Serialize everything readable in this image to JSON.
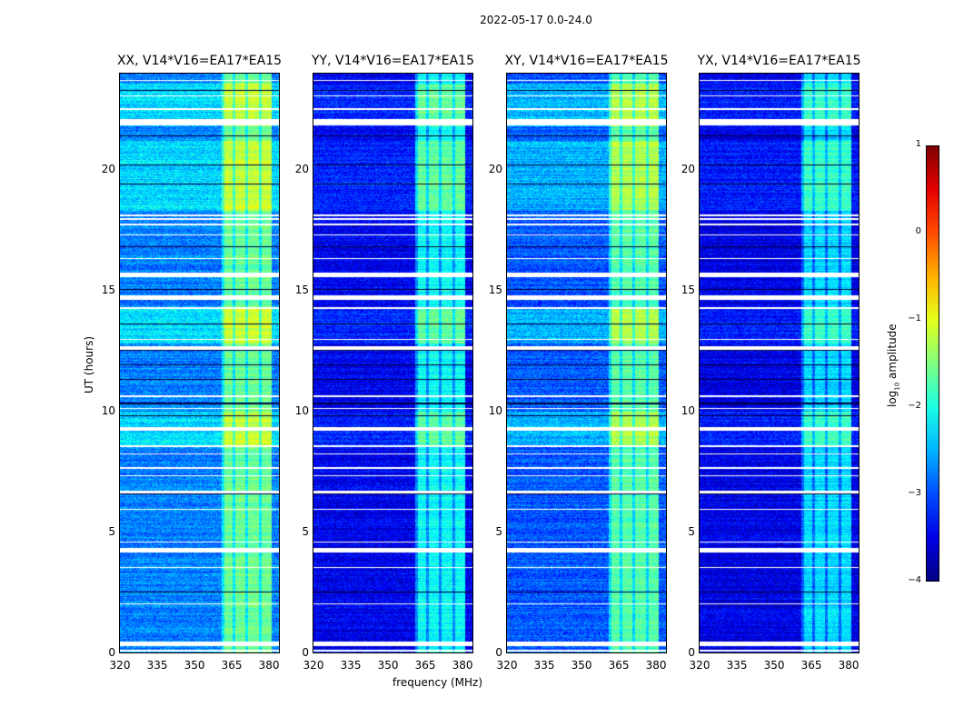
{
  "chart_data": {
    "type": "heatmap",
    "title": "2022-05-17 0.0-24.0",
    "xlabel": "frequency (MHz)",
    "ylabel": "UT (hours)",
    "xlim": [
      320,
      384
    ],
    "ylim": [
      0,
      24
    ],
    "xticks": [
      "320",
      "335",
      "350",
      "365",
      "380"
    ],
    "yticks": [
      "0",
      "5",
      "10",
      "15",
      "20"
    ],
    "xtick_values": [
      320,
      335,
      350,
      365,
      380
    ],
    "ytick_values": [
      0,
      5,
      10,
      15,
      20
    ],
    "colorbar": {
      "label_main": "log",
      "label_sub": "10",
      "label_rest": " amplitude",
      "range": [
        -4,
        1
      ],
      "ticks": [
        "1",
        "0",
        "−1",
        "−2",
        "−3",
        "−4"
      ],
      "tick_values": [
        1,
        0,
        -1,
        -2,
        -3,
        -4
      ],
      "colormap": "jet"
    },
    "panels": [
      {
        "title": "XX, V14*V16=EA17*EA15",
        "base_level": -2.75,
        "rfi_level": -1.6
      },
      {
        "title": "YY, V14*V16=EA17*EA15",
        "base_level": -3.45,
        "rfi_level": -2.1
      },
      {
        "title": "XY, V14*V16=EA17*EA15",
        "base_level": -2.95,
        "rfi_level": -1.7
      },
      {
        "title": "YX, V14*V16=EA17*EA15",
        "base_level": -3.5,
        "rfi_level": -2.3
      }
    ],
    "rfi_band_mhz": [
      361,
      381
    ],
    "rfi_stripes_mhz": [
      361.5,
      366,
      371,
      376.5
    ],
    "enhanced_ut_hours": [
      [
        18.3,
        21.2
      ],
      [
        12.8,
        14.3
      ],
      [
        8.6,
        10.0
      ],
      [
        21.8,
        23.6
      ]
    ],
    "flagged_ut_hours": [
      [
        0.05,
        0.12
      ],
      [
        0.25,
        0.45
      ],
      [
        2.0,
        2.05
      ],
      [
        3.5,
        3.56
      ],
      [
        4.15,
        4.35
      ],
      [
        4.55,
        4.6
      ],
      [
        5.9,
        5.95
      ],
      [
        6.6,
        6.7
      ],
      [
        7.3,
        7.35
      ],
      [
        7.6,
        7.68
      ],
      [
        8.2,
        8.25
      ],
      [
        8.5,
        8.6
      ],
      [
        9.2,
        9.35
      ],
      [
        10.1,
        10.15
      ],
      [
        10.6,
        10.66
      ],
      [
        12.55,
        12.7
      ],
      [
        12.95,
        13.0
      ],
      [
        14.25,
        14.3
      ],
      [
        14.6,
        14.8
      ],
      [
        15.55,
        15.75
      ],
      [
        16.3,
        16.35
      ],
      [
        17.3,
        17.35
      ],
      [
        17.7,
        17.78
      ],
      [
        17.95,
        18.02
      ],
      [
        18.1,
        18.16
      ],
      [
        21.85,
        22.1
      ],
      [
        22.5,
        22.58
      ],
      [
        23.05,
        23.1
      ],
      [
        23.7,
        23.75
      ]
    ],
    "zero_ut_hours": [
      [
        1.0,
        1.03
      ],
      [
        2.5,
        2.53
      ],
      [
        3.0,
        3.03
      ],
      [
        5.3,
        5.33
      ],
      [
        6.55,
        6.58
      ],
      [
        8.8,
        8.83
      ],
      [
        9.8,
        9.83
      ],
      [
        10.3,
        10.35
      ],
      [
        10.8,
        10.83
      ],
      [
        11.3,
        11.33
      ],
      [
        11.9,
        11.93
      ],
      [
        12.5,
        12.53
      ],
      [
        13.6,
        13.63
      ],
      [
        15.05,
        15.08
      ],
      [
        16.8,
        16.83
      ],
      [
        19.4,
        19.43
      ],
      [
        20.2,
        20.23
      ],
      [
        21.4,
        21.43
      ],
      [
        23.3,
        23.33
      ]
    ]
  }
}
